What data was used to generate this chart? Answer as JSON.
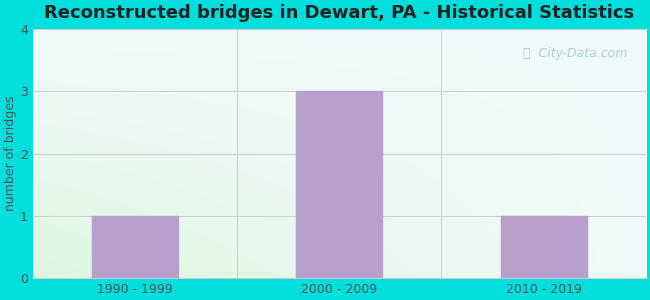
{
  "title": "Reconstructed bridges in Dewart, PA - Historical Statistics",
  "categories": [
    "1990 - 1999",
    "2000 - 2009",
    "2010 - 2019"
  ],
  "values": [
    1,
    3,
    1
  ],
  "bar_color": "#b8a0cc",
  "ylabel": "number of bridges",
  "ylim": [
    0,
    4
  ],
  "yticks": [
    0,
    1,
    2,
    3,
    4
  ],
  "background_outer": "#00dede",
  "grid_color": "#cccccc",
  "title_fontsize": 13,
  "title_color": "#222222",
  "axis_label_color": "#555555",
  "tick_label_color": "#555555",
  "watermark_text": "ⓘ  City-Data.com",
  "watermark_color": "#aacccc"
}
